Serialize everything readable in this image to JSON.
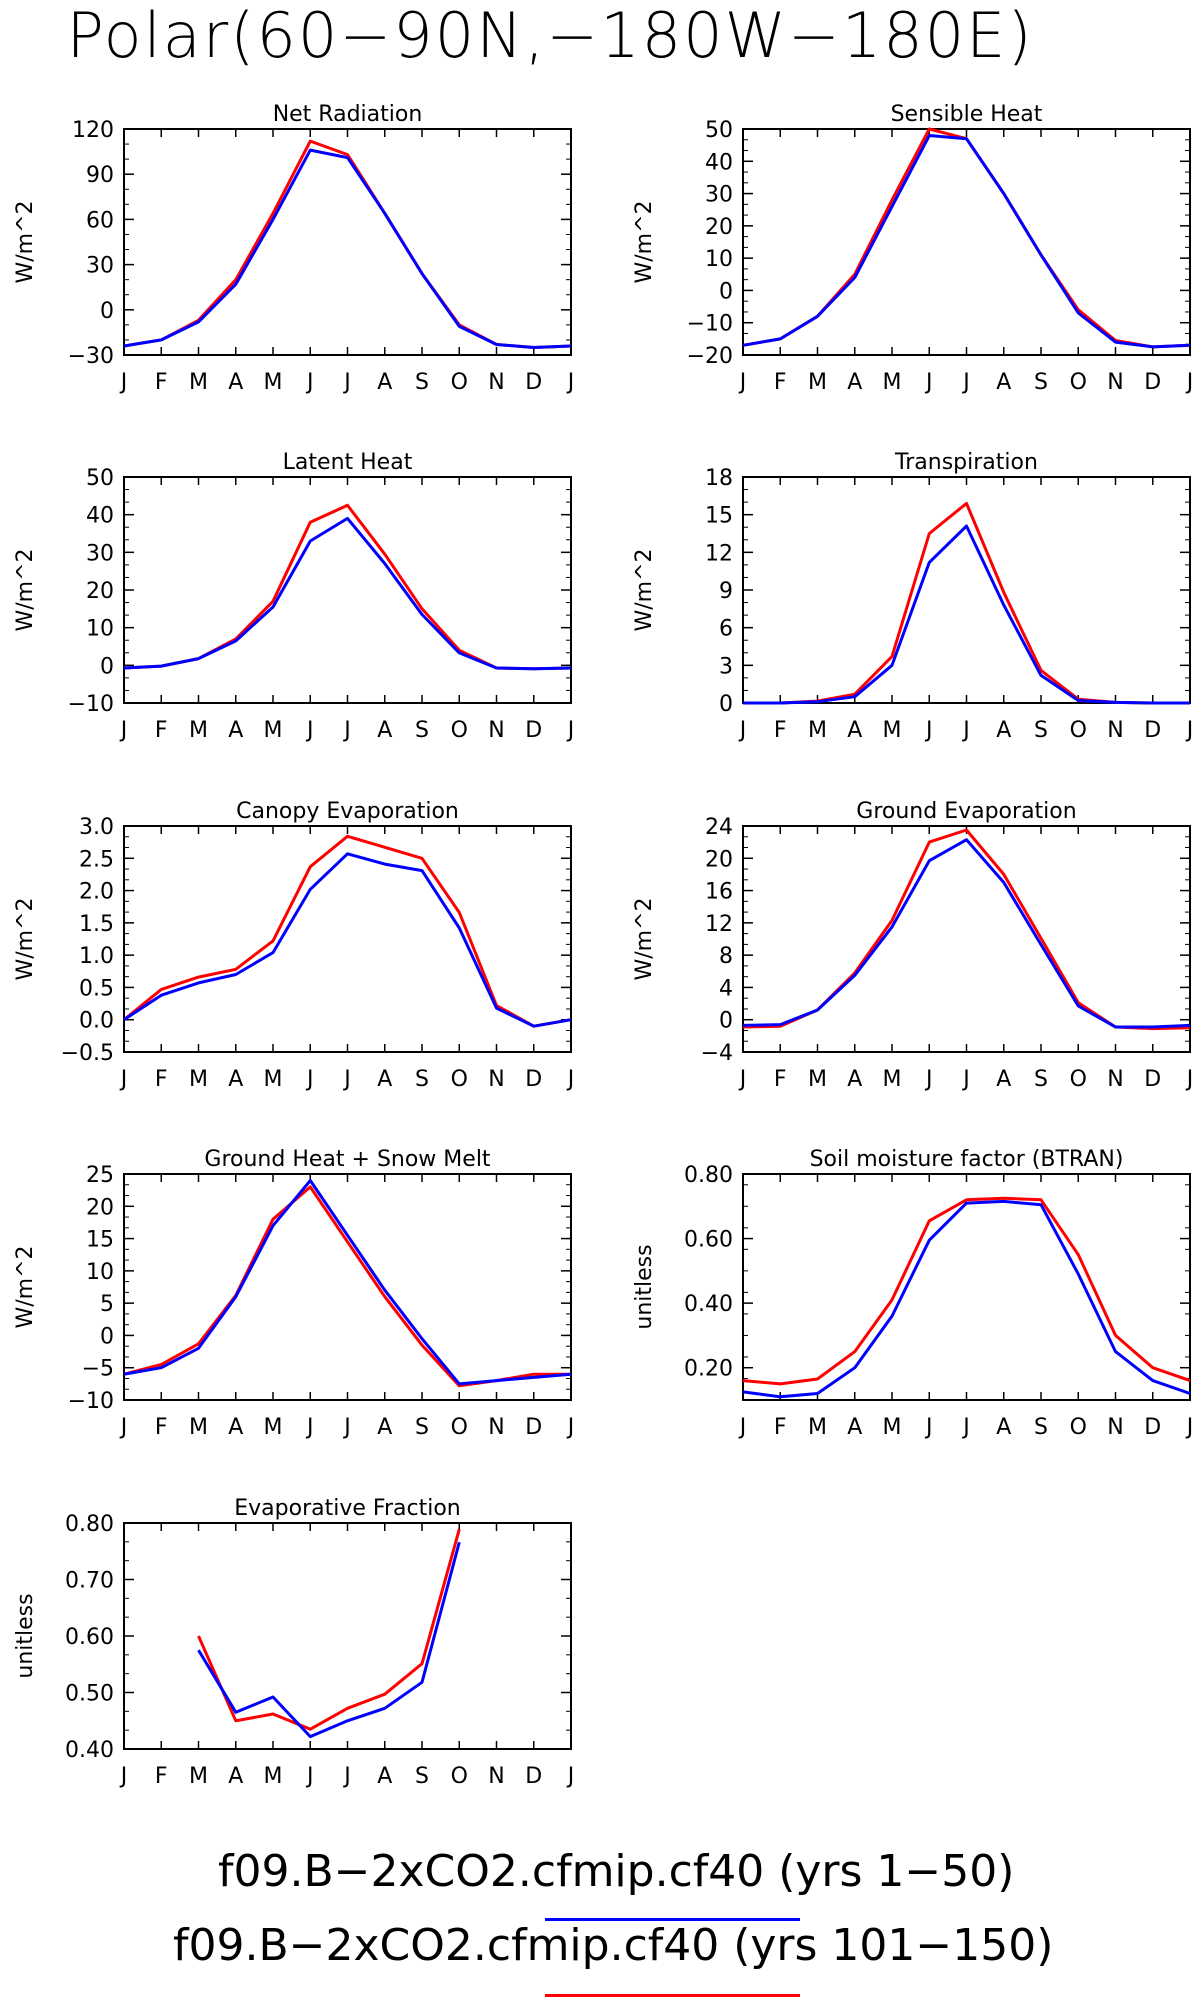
{
  "title": "Polar(60−90N,−180W−180E)",
  "months": [
    "J",
    "F",
    "M",
    "A",
    "M",
    "J",
    "J",
    "A",
    "S",
    "O",
    "N",
    "D",
    "J"
  ],
  "colors": {
    "series_1": "#0000ff",
    "series_2": "#ff0000"
  },
  "legend": [
    {
      "label": "f09.B−2xCO2.cfmip.cf40 (yrs 1−50)",
      "color": "#0000ff"
    },
    {
      "label": "f09.B−2xCO2.cfmip.cf40 (yrs 101−150)",
      "color": "#ff0000"
    }
  ],
  "chart_data": [
    {
      "type": "line",
      "title": "Net Radiation",
      "ylabel": "W/m^2",
      "ylim": [
        -30,
        120
      ],
      "yticks": [
        "120",
        "90",
        "60",
        "30",
        "0",
        "−30"
      ],
      "ytick_values": [
        120,
        90,
        60,
        30,
        0,
        -30
      ],
      "series": [
        {
          "values": [
            -24,
            -20,
            -8,
            17,
            60,
            106,
            101,
            64,
            24,
            -11,
            -23,
            -25,
            -24
          ]
        },
        {
          "values": [
            -24,
            -20,
            -7,
            20,
            64,
            112,
            103,
            64,
            24,
            -10,
            -23,
            -25,
            -24
          ]
        }
      ]
    },
    {
      "type": "line",
      "title": "Sensible Heat",
      "ylabel": "W/m^2",
      "ylim": [
        -20,
        50
      ],
      "yticks": [
        "50",
        "40",
        "30",
        "20",
        "10",
        "0",
        "−10",
        "−20"
      ],
      "ytick_values": [
        50,
        40,
        30,
        20,
        10,
        0,
        -10,
        -20
      ],
      "series": [
        {
          "values": [
            -17,
            -15,
            -8,
            4,
            26,
            48,
            47,
            30,
            11,
            -7,
            -16,
            -17.5,
            -17
          ]
        },
        {
          "values": [
            -17,
            -15,
            -8,
            5,
            28,
            50,
            47,
            30,
            11,
            -6,
            -15.5,
            -17.5,
            -17
          ]
        }
      ]
    },
    {
      "type": "line",
      "title": "Latent Heat",
      "ylabel": "W/m^2",
      "ylim": [
        -10,
        50
      ],
      "yticks": [
        "50",
        "40",
        "30",
        "20",
        "10",
        "0",
        "−10"
      ],
      "ytick_values": [
        50,
        40,
        30,
        20,
        10,
        0,
        -10
      ],
      "series": [
        {
          "values": [
            -0.7,
            -0.2,
            1.8,
            6.5,
            15.5,
            33,
            39,
            27,
            13.5,
            3.3,
            -0.7,
            -0.9,
            -0.7
          ]
        },
        {
          "values": [
            -0.7,
            -0.2,
            1.8,
            7,
            17,
            38,
            42.5,
            29.5,
            15,
            4,
            -0.7,
            -0.9,
            -0.7
          ]
        }
      ]
    },
    {
      "type": "line",
      "title": "Transpiration",
      "ylabel": "W/m^2",
      "ylim": [
        0,
        18
      ],
      "yticks": [
        "18",
        "15",
        "12",
        "9",
        "6",
        "3",
        "0"
      ],
      "ytick_values": [
        18,
        15,
        12,
        9,
        6,
        3,
        0
      ],
      "series": [
        {
          "values": [
            0,
            0,
            0.1,
            0.5,
            3,
            11.2,
            14.1,
            7.8,
            2.2,
            0.2,
            0.05,
            0,
            0
          ]
        },
        {
          "values": [
            0,
            0,
            0.15,
            0.7,
            3.7,
            13.5,
            15.9,
            8.8,
            2.6,
            0.3,
            0.05,
            0,
            0
          ]
        }
      ]
    },
    {
      "type": "line",
      "title": "Canopy Evaporation",
      "ylabel": "W/m^2",
      "ylim": [
        -0.5,
        3.0
      ],
      "yticks": [
        "3.0",
        "2.5",
        "2.0",
        "1.5",
        "1.0",
        "0.5",
        "0.0",
        "−0.5"
      ],
      "ytick_values": [
        3.0,
        2.5,
        2.0,
        1.5,
        1.0,
        0.5,
        0.0,
        -0.5
      ],
      "series": [
        {
          "values": [
            0,
            0.38,
            0.57,
            0.7,
            1.04,
            2.02,
            2.57,
            2.41,
            2.31,
            1.42,
            0.18,
            -0.1,
            0
          ]
        },
        {
          "values": [
            0,
            0.47,
            0.66,
            0.78,
            1.22,
            2.37,
            2.84,
            2.67,
            2.5,
            1.66,
            0.22,
            -0.1,
            0
          ]
        }
      ]
    },
    {
      "type": "line",
      "title": "Ground Evaporation",
      "ylabel": "W/m^2",
      "ylim": [
        -4,
        24
      ],
      "yticks": [
        "24",
        "20",
        "16",
        "12",
        "8",
        "4",
        "0",
        "−4"
      ],
      "ytick_values": [
        24,
        20,
        16,
        12,
        8,
        4,
        0,
        -4
      ],
      "series": [
        {
          "values": [
            -0.7,
            -0.6,
            1.2,
            5.5,
            11.5,
            19.7,
            22.3,
            17,
            9.3,
            1.7,
            -0.9,
            -0.9,
            -0.7
          ]
        },
        {
          "values": [
            -0.9,
            -0.8,
            1.2,
            5.8,
            12.3,
            22,
            23.5,
            18,
            10.1,
            2.1,
            -0.9,
            -1.1,
            -1
          ]
        }
      ]
    },
    {
      "type": "line",
      "title": "Ground Heat + Snow Melt",
      "ylabel": "W/m^2",
      "ylim": [
        -10,
        25
      ],
      "yticks": [
        "25",
        "20",
        "15",
        "10",
        "5",
        "0",
        "−5",
        "−10"
      ],
      "ytick_values": [
        25,
        20,
        15,
        10,
        5,
        0,
        -5,
        -10
      ],
      "series": [
        {
          "values": [
            -6,
            -5,
            -2,
            6,
            17,
            24,
            15.5,
            7,
            -0.5,
            -7.5,
            -7,
            -6.5,
            -6
          ]
        },
        {
          "values": [
            -6,
            -4.5,
            -1.3,
            6.2,
            18,
            23,
            14.5,
            6,
            -1.5,
            -7.8,
            -7,
            -6,
            -6
          ]
        }
      ]
    },
    {
      "type": "line",
      "title": "Soil moisture factor (BTRAN)",
      "ylabel": "unitless",
      "ylim": [
        0.1,
        0.8
      ],
      "yticks": [
        "0.80",
        "0.60",
        "0.40",
        "0.20"
      ],
      "ytick_values": [
        0.8,
        0.6,
        0.4,
        0.2
      ],
      "series": [
        {
          "values": [
            0.125,
            0.11,
            0.12,
            0.2,
            0.36,
            0.595,
            0.71,
            0.715,
            0.705,
            0.49,
            0.25,
            0.16,
            0.12
          ]
        },
        {
          "values": [
            0.16,
            0.15,
            0.165,
            0.25,
            0.41,
            0.655,
            0.72,
            0.725,
            0.72,
            0.55,
            0.3,
            0.2,
            0.16
          ]
        }
      ]
    },
    {
      "type": "line",
      "title": "Evaporative Fraction",
      "ylabel": "unitless",
      "ylim": [
        0.4,
        0.8
      ],
      "yticks": [
        "0.80",
        "0.70",
        "0.60",
        "0.50",
        "0.40"
      ],
      "ytick_values": [
        0.8,
        0.7,
        0.6,
        0.5,
        0.4
      ],
      "series": [
        {
          "values": [
            null,
            null,
            0.575,
            0.465,
            0.492,
            0.422,
            0.45,
            0.472,
            0.518,
            0.766,
            null,
            null,
            null
          ]
        },
        {
          "values": [
            null,
            null,
            0.6,
            0.45,
            0.462,
            0.435,
            0.472,
            0.497,
            0.551,
            0.789,
            null,
            null,
            null
          ]
        }
      ]
    }
  ]
}
